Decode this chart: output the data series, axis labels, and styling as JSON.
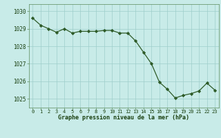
{
  "x": [
    0,
    1,
    2,
    3,
    4,
    5,
    6,
    7,
    8,
    9,
    10,
    11,
    12,
    13,
    14,
    15,
    16,
    17,
    18,
    19,
    20,
    21,
    22,
    23
  ],
  "y": [
    1029.6,
    1029.2,
    1029.0,
    1028.8,
    1029.0,
    1028.75,
    1028.85,
    1028.85,
    1028.85,
    1028.9,
    1028.9,
    1028.75,
    1028.75,
    1028.3,
    1027.65,
    1027.0,
    1025.95,
    1025.55,
    1025.05,
    1025.2,
    1025.3,
    1025.45,
    1025.9,
    1025.5
  ],
  "line_color": "#2d5a27",
  "marker_color": "#2d5a27",
  "bg_color": "#c8ebe8",
  "grid_color": "#9ececa",
  "xlabel": "Graphe pression niveau de la mer (hPa)",
  "xlabel_color": "#1a4010",
  "tick_color": "#1a4010",
  "axis_color": "#5a8a5a",
  "ylim_min": 1024.5,
  "ylim_max": 1030.4,
  "yticks": [
    1025,
    1026,
    1027,
    1028,
    1029,
    1030
  ],
  "xticks": [
    0,
    1,
    2,
    3,
    4,
    5,
    6,
    7,
    8,
    9,
    10,
    11,
    12,
    13,
    14,
    15,
    16,
    17,
    18,
    19,
    20,
    21,
    22,
    23
  ]
}
